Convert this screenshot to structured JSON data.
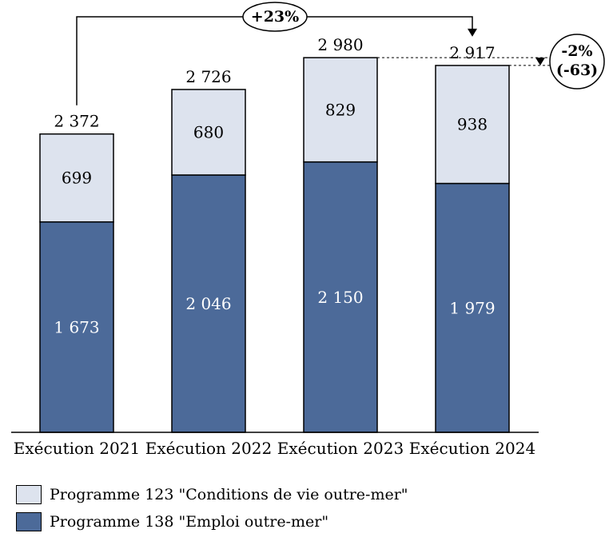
{
  "chart_data": {
    "type": "bar",
    "stacked": true,
    "categories": [
      "Exécution 2021",
      "Exécution 2022",
      "Exécution 2023",
      "Exécution 2024"
    ],
    "series": [
      {
        "name": "Programme 138 \"Emploi outre-mer\"",
        "values": [
          1673,
          2046,
          2150,
          1979
        ],
        "color": "#4c6a99",
        "labels": [
          "1 673",
          "2 046",
          "2 150",
          "1 979"
        ]
      },
      {
        "name": "Programme 123 \"Conditions de vie outre-mer\"",
        "values": [
          699,
          680,
          829,
          938
        ],
        "color": "#dde3ee",
        "labels": [
          "699",
          "680",
          "829",
          "938"
        ]
      }
    ],
    "totals": [
      2372,
      2726,
      2980,
      2917
    ],
    "total_labels": [
      "2 372",
      "2 726",
      "2 980",
      "2 917"
    ],
    "ylim": [
      0,
      3000
    ],
    "annotations": [
      {
        "from": "Exécution 2021",
        "to": "Exécution 2024",
        "text": "+23%"
      },
      {
        "from": "Exécution 2023",
        "to": "Exécution 2024",
        "text": [
          "-2%",
          "(-63)"
        ]
      }
    ],
    "legend_position": "bottom-left"
  },
  "legend": {
    "items": [
      {
        "label": "Programme 123 \"Conditions de vie outre-mer\"",
        "color": "#dde3ee"
      },
      {
        "label": "Programme 138 \"Emploi outre-mer\"",
        "color": "#4c6a99"
      }
    ]
  }
}
